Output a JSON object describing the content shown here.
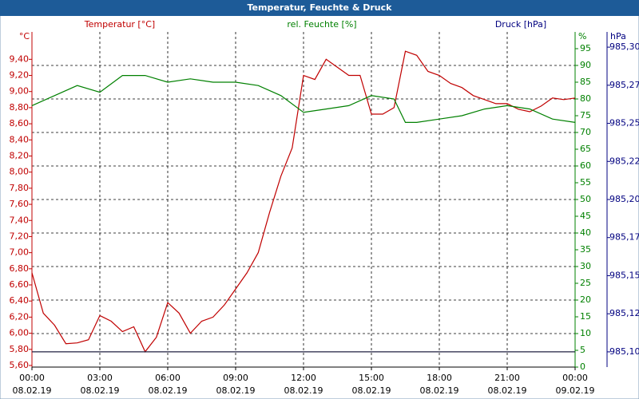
{
  "chart_data": {
    "type": "line",
    "title": "Temperatur, Feuchte & Druck",
    "y_label": "Temperatur [°C]",
    "y_unit": "°C",
    "y2_label": "rel. Feuchte [%]",
    "y2_unit": "%",
    "y3_label": "Druck [hPa]",
    "y3_unit": "hPa",
    "xlim": [
      0,
      24
    ],
    "xticks": [
      {
        "value": 0,
        "label": "00:00",
        "date": "08.02.19"
      },
      {
        "value": 3,
        "label": "03:00",
        "date": "08.02.19"
      },
      {
        "value": 6,
        "label": "06:00",
        "date": "08.02.19"
      },
      {
        "value": 9,
        "label": "09:00",
        "date": "08.02.19"
      },
      {
        "value": 12,
        "label": "12:00",
        "date": "08.02.19"
      },
      {
        "value": 15,
        "label": "15:00",
        "date": "08.02.19"
      },
      {
        "value": 18,
        "label": "18:00",
        "date": "08.02.19"
      },
      {
        "value": 21,
        "label": "21:00",
        "date": "08.02.19"
      },
      {
        "value": 24,
        "label": "00:00",
        "date": "09.02.19"
      }
    ],
    "ylim": [
      5.58,
      9.74
    ],
    "yticks": [
      {
        "value": 5.6,
        "label": "5,60"
      },
      {
        "value": 5.8,
        "label": "5,80"
      },
      {
        "value": 6.0,
        "label": "6,00"
      },
      {
        "value": 6.2,
        "label": "6,20"
      },
      {
        "value": 6.4,
        "label": "6,40"
      },
      {
        "value": 6.6,
        "label": "6,60"
      },
      {
        "value": 6.8,
        "label": "6,80"
      },
      {
        "value": 7.0,
        "label": "7,00"
      },
      {
        "value": 7.2,
        "label": "7,20"
      },
      {
        "value": 7.4,
        "label": "7,40"
      },
      {
        "value": 7.6,
        "label": "7,60"
      },
      {
        "value": 7.8,
        "label": "7,80"
      },
      {
        "value": 8.0,
        "label": "8,00"
      },
      {
        "value": 8.2,
        "label": "8,20"
      },
      {
        "value": 8.4,
        "label": "8,40"
      },
      {
        "value": 8.6,
        "label": "8,60"
      },
      {
        "value": 8.8,
        "label": "8,80"
      },
      {
        "value": 9.0,
        "label": "9,00"
      },
      {
        "value": 9.2,
        "label": "9,20"
      },
      {
        "value": 9.4,
        "label": "9,40"
      }
    ],
    "y2lim": [
      0,
      100
    ],
    "y2ticks": [
      0,
      5,
      10,
      15,
      20,
      25,
      30,
      35,
      40,
      45,
      50,
      55,
      60,
      65,
      70,
      75,
      80,
      85,
      90,
      95
    ],
    "y3lim": [
      985.09,
      985.31
    ],
    "y3ticks": [
      {
        "value": 985.1,
        "label": "985,10"
      },
      {
        "value": 985.125,
        "label": "985,12"
      },
      {
        "value": 985.15,
        "label": "985,15"
      },
      {
        "value": 985.175,
        "label": "985,17"
      },
      {
        "value": 985.2,
        "label": "985,20"
      },
      {
        "value": 985.225,
        "label": "985,22"
      },
      {
        "value": 985.25,
        "label": "985,25"
      },
      {
        "value": 985.275,
        "label": "985,27"
      },
      {
        "value": 985.3,
        "label": "985,30"
      }
    ],
    "grid": true,
    "series": [
      {
        "name": "Temperatur",
        "color": "#c00000",
        "axis": "y",
        "x": [
          0,
          0.5,
          1,
          1.5,
          2,
          2.5,
          3,
          3.5,
          4,
          4.5,
          5,
          5.5,
          6,
          6.5,
          7,
          7.5,
          8,
          8.5,
          9,
          9.5,
          10,
          10.5,
          11,
          11.5,
          12,
          12.5,
          13,
          13.5,
          14,
          14.5,
          15,
          15.5,
          16,
          16.5,
          17,
          17.5,
          18,
          18.5,
          19,
          19.5,
          20,
          20.5,
          21,
          21.5,
          22,
          22.5,
          23,
          23.5,
          24
        ],
        "values": [
          6.75,
          6.25,
          6.1,
          5.87,
          5.88,
          5.92,
          6.22,
          6.15,
          6.02,
          6.08,
          5.77,
          5.95,
          6.38,
          6.25,
          6.0,
          6.15,
          6.2,
          6.35,
          6.55,
          6.75,
          7.0,
          7.5,
          7.95,
          8.3,
          9.2,
          9.15,
          9.4,
          9.3,
          9.2,
          9.2,
          8.72,
          8.72,
          8.8,
          9.5,
          9.45,
          9.25,
          9.2,
          9.1,
          9.05,
          8.95,
          8.9,
          8.85,
          8.85,
          8.78,
          8.75,
          8.82,
          8.92,
          8.9,
          8.92
        ]
      },
      {
        "name": "rel. Feuchte",
        "color": "#008000",
        "axis": "y2",
        "x": [
          0,
          1,
          2,
          3,
          4,
          5,
          6,
          7,
          8,
          9,
          10,
          11,
          12,
          13,
          14,
          15,
          16,
          16.5,
          17,
          18,
          19,
          20,
          21,
          22,
          23,
          24
        ],
        "values": [
          78,
          81,
          84,
          82,
          87,
          87,
          85,
          86,
          85,
          85,
          84,
          81,
          76,
          77,
          78,
          81,
          80,
          73,
          73,
          74,
          75,
          77,
          78,
          77,
          74,
          73
        ]
      },
      {
        "name": "Druck",
        "color": "#202040",
        "axis": "y3",
        "x": [
          0,
          24
        ],
        "values": [
          985.1,
          985.1
        ]
      }
    ]
  }
}
